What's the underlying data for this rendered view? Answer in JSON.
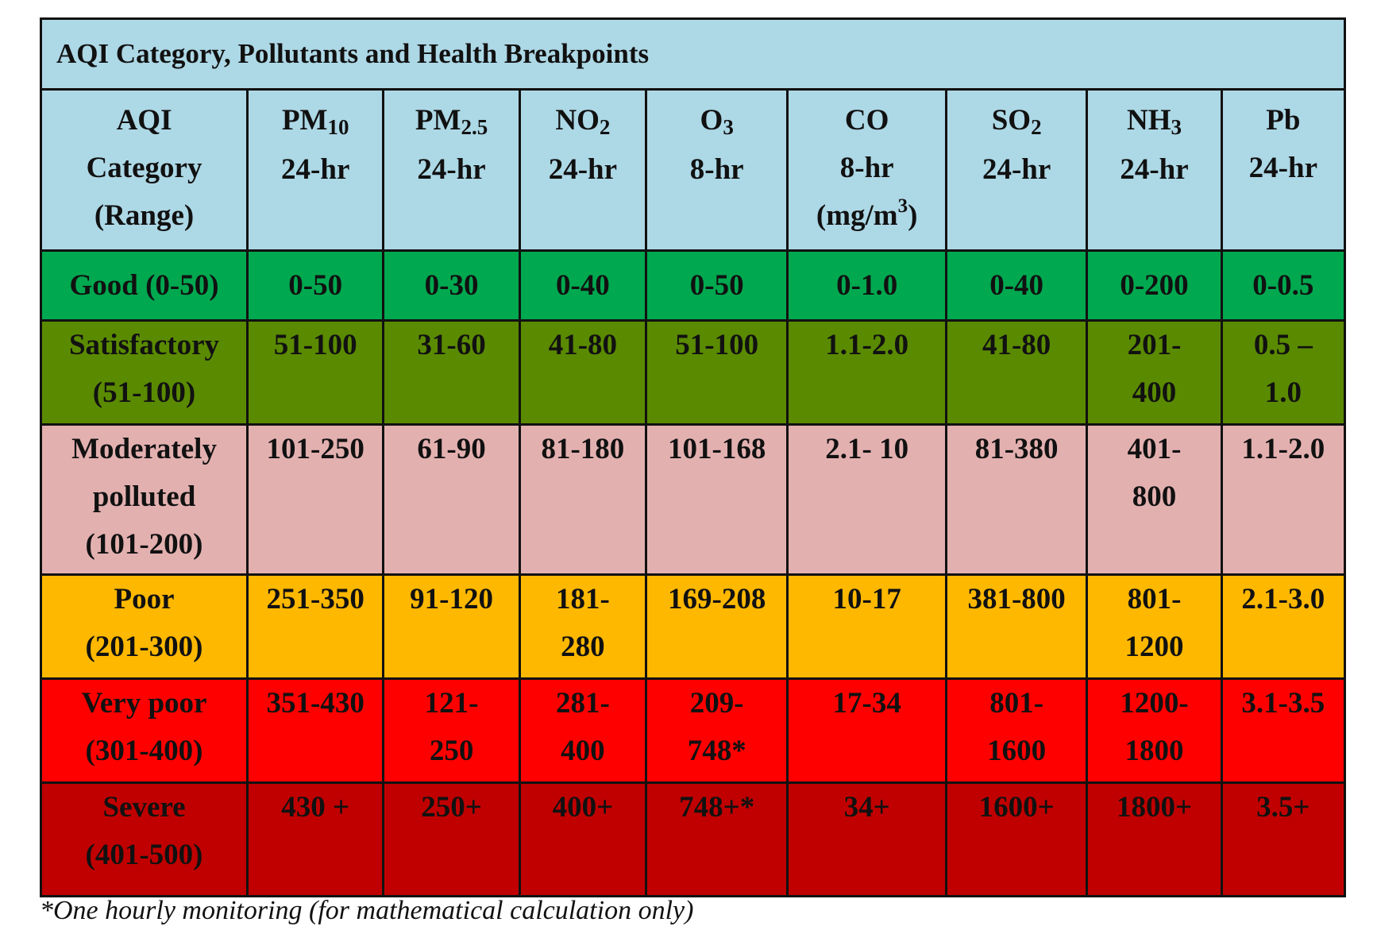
{
  "table": {
    "title": "AQI Category, Pollutants and Health Breakpoints",
    "header": {
      "category": [
        "AQI",
        "Category",
        "(Range)"
      ],
      "pollutants": [
        {
          "name": "PM",
          "sub": "10",
          "period": "24-hr"
        },
        {
          "name": "PM",
          "sub": "2.5",
          "period": "24-hr"
        },
        {
          "name": "NO",
          "sub": "2",
          "period": "24-hr"
        },
        {
          "name": "O",
          "sub": "3",
          "period": "8-hr"
        },
        {
          "name": "CO",
          "sub": "",
          "period": "8-hr",
          "unit_pre": "(mg/m",
          "unit_sup": "3",
          "unit_post": ")"
        },
        {
          "name": "SO",
          "sub": "2",
          "period": "24-hr"
        },
        {
          "name": "NH",
          "sub": "3",
          "period": "24-hr"
        },
        {
          "name": "Pb",
          "sub": "",
          "period": "24-hr"
        }
      ]
    },
    "rows": [
      {
        "key": "good",
        "color": "#00a84f",
        "category": [
          "Good (0-50)"
        ],
        "values": [
          "0-50",
          "0-30",
          "0-40",
          "0-50",
          "0-1.0",
          "0-40",
          "0-200",
          "0-0.5"
        ]
      },
      {
        "key": "sat",
        "color": "#5a8a00",
        "category": [
          "Satisfactory",
          "(51-100)"
        ],
        "values": [
          "51-100",
          "31-60",
          "41-80",
          "51-100",
          "1.1-2.0",
          "41-80",
          "201-\n400",
          "0.5 –\n1.0"
        ]
      },
      {
        "key": "mod",
        "color": "#e3b0b0",
        "category": [
          "Moderately",
          "polluted",
          "(101-200)"
        ],
        "values": [
          "101-250",
          "61-90",
          "81-180",
          "101-168",
          "2.1- 10",
          "81-380",
          "401-\n800",
          "1.1-2.0"
        ]
      },
      {
        "key": "poor",
        "color": "#ffb800",
        "category": [
          "Poor",
          "(201-300)"
        ],
        "values": [
          "251-350",
          "91-120",
          "181-\n280",
          "169-208",
          "10-17",
          "381-800",
          "801-\n1200",
          "2.1-3.0"
        ]
      },
      {
        "key": "vpoor",
        "color": "#ff0000",
        "category": [
          "Very poor",
          "(301-400)"
        ],
        "values": [
          "351-430",
          "121-\n250",
          "281-\n400",
          "209-\n748*",
          "17-34",
          "801-\n1600",
          "1200-\n1800",
          "3.1-3.5"
        ]
      },
      {
        "key": "sev",
        "color": "#c00000",
        "category": [
          "Severe",
          "(401-500)"
        ],
        "values": [
          "430 +",
          "250+",
          "400+",
          "748+*",
          "34+",
          "1600+",
          "1800+",
          "3.5+"
        ]
      }
    ]
  },
  "footnote": "*One hourly monitoring (for mathematical calculation only)"
}
